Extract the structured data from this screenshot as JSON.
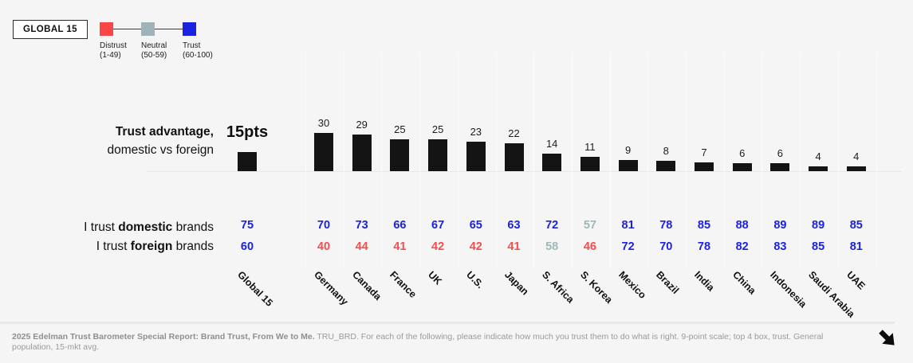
{
  "header": {
    "tag": "GLOBAL 15",
    "legend": {
      "items": [
        {
          "name": "Distrust",
          "range": "(1-49)",
          "color": "#f84545"
        },
        {
          "name": "Neutral",
          "range": "(50-59)",
          "color": "#9db5b9"
        },
        {
          "name": "Trust",
          "range": "(60-100)",
          "color": "#1b22e0"
        }
      ]
    }
  },
  "chart_data": {
    "type": "bar",
    "title": "Trust advantage, domestic vs foreign",
    "title_bold": "Trust advantage,",
    "title_rest": "domestic vs foreign",
    "global_bar_label": "15pts",
    "categories": [
      "Global 15",
      "Germany",
      "Canada",
      "France",
      "UK",
      "U.S.",
      "Japan",
      "S. Africa",
      "S. Korea",
      "Mexico",
      "Brazil",
      "India",
      "China",
      "Indonesia",
      "Saudi Arabia",
      "UAE"
    ],
    "series": [
      {
        "name": "Trust advantage (domestic vs foreign, pts)",
        "values": [
          15,
          30,
          29,
          25,
          25,
          23,
          22,
          14,
          11,
          9,
          8,
          7,
          6,
          6,
          4,
          4
        ]
      },
      {
        "name": "I trust domestic brands",
        "values": [
          75,
          70,
          73,
          66,
          67,
          65,
          63,
          72,
          57,
          81,
          78,
          85,
          88,
          89,
          89,
          85
        ]
      },
      {
        "name": "I trust foreign brands",
        "values": [
          60,
          40,
          44,
          41,
          42,
          42,
          41,
          58,
          46,
          72,
          70,
          78,
          82,
          83,
          85,
          81
        ]
      }
    ],
    "bar_color": "#141414",
    "value_color_scale": {
      "distrust_max": 49,
      "neutral_max": 59,
      "distrust": "#f84b4b",
      "neutral": "#9fb7bb",
      "trust": "#1b22e0"
    },
    "ylim": [
      0,
      35
    ],
    "grid": "vertical-only",
    "legend_position": "top-left"
  },
  "row_labels": {
    "prefix": "I trust ",
    "domestic_word": "domestic",
    "foreign_word": "foreign",
    "suffix": " brands"
  },
  "footer": {
    "source_bold": "2025 Edelman Trust Barometer Special Report: Brand Trust, From We to Me.",
    "source_rest": " TRU_BRD. For each of the following, please indicate how much you trust them to do what is right. 9-point scale; top 4 box, trust. General population, 15-mkt avg.",
    "arrow_icon": "next-arrow"
  }
}
